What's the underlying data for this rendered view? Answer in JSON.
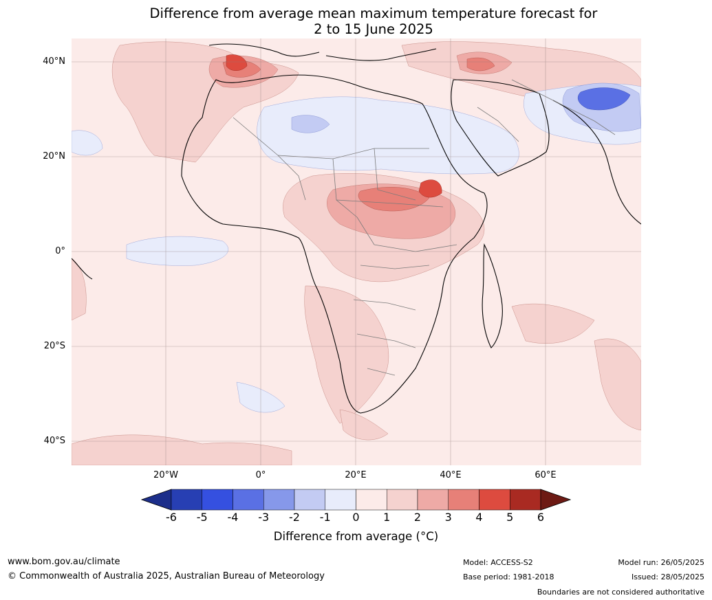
{
  "title": {
    "line1": "Difference from average mean maximum temperature forecast for",
    "line2": "2 to 15 June 2025"
  },
  "map": {
    "lat_labels": [
      "40°N",
      "20°N",
      "0°",
      "20°S",
      "40°S"
    ],
    "lon_labels": [
      "20°W",
      "0°",
      "20°E",
      "40°E",
      "60°E"
    ],
    "background_color": "#fcebe9",
    "grid": true
  },
  "colorbar": {
    "ticks": [
      "-6",
      "-5",
      "-4",
      "-3",
      "-2",
      "-1",
      "0",
      "1",
      "2",
      "3",
      "4",
      "5",
      "6"
    ],
    "colors": [
      "#1c2e8a",
      "#273fb3",
      "#3550e0",
      "#5a70e4",
      "#8698ea",
      "#c3cbf3",
      "#e8ecfb",
      "#fcebe9",
      "#f5d2cf",
      "#eeaaa6",
      "#e78078",
      "#dd4b3f",
      "#a92a22",
      "#6d1a14"
    ],
    "label": "Difference from average (°C)"
  },
  "footer": {
    "url": "www.bom.gov.au/climate",
    "copyright": "© Commonwealth of Australia 2025, Australian Bureau of Meteorology",
    "model": "Model: ACCESS-S2",
    "base_period": "Base period: 1981-2018",
    "model_run": "Model run: 26/05/2025",
    "issued": "Issued: 28/05/2025",
    "disclaimer": "Boundaries are not considered authoritative"
  }
}
